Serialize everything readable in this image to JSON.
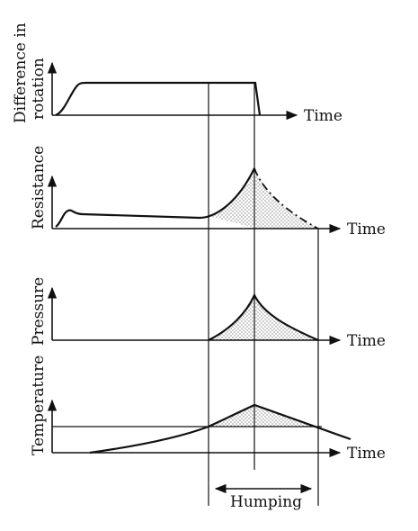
{
  "panels": {
    "rotation": {
      "ylabel_line1": "Difference in",
      "ylabel_line2": "rotation",
      "xlabel": "Time"
    },
    "resistance": {
      "ylabel": "Resistance",
      "xlabel": "Time"
    },
    "pressure": {
      "ylabel": "Pressure",
      "xlabel": "Time"
    },
    "temperature": {
      "ylabel": "Temperature",
      "xlabel": "Time"
    }
  },
  "humping_label": "Humping"
}
